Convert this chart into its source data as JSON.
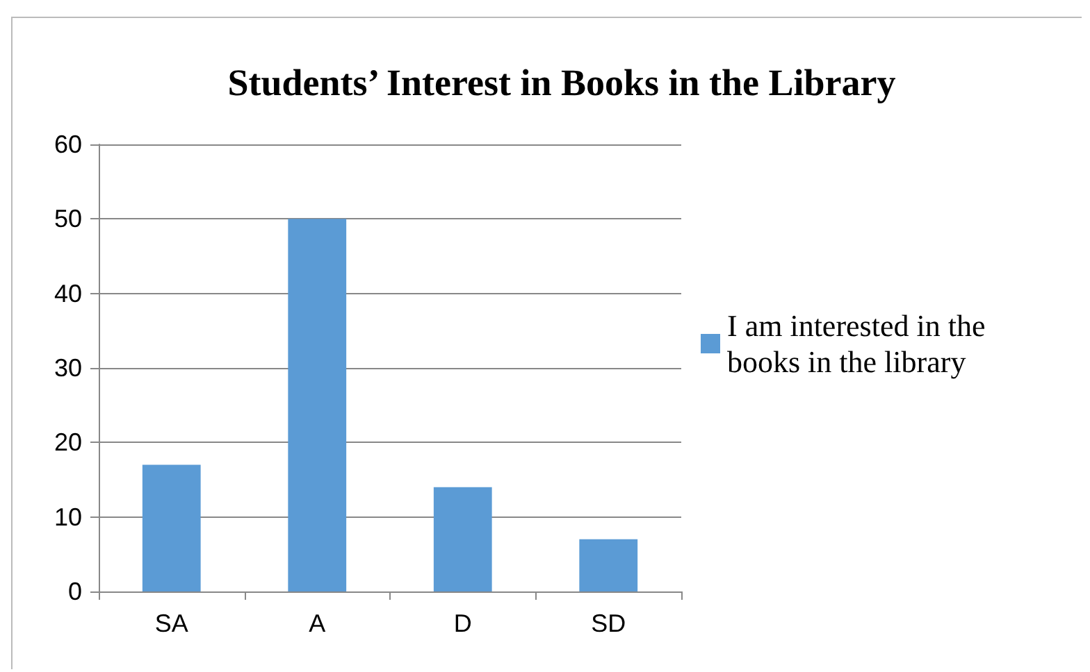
{
  "chart_data": {
    "type": "bar",
    "title": "Students’ Interest in Books in the Library",
    "categories": [
      "SA",
      "A",
      "D",
      "SD"
    ],
    "series": [
      {
        "name": "I am interested in the books in the library",
        "color": "#5b9bd5",
        "values": [
          17,
          50,
          14,
          7
        ]
      }
    ],
    "ylim": [
      0,
      60
    ],
    "yticks": [
      0,
      10,
      20,
      30,
      40,
      50,
      60
    ],
    "grid": "y",
    "legend": "right"
  }
}
